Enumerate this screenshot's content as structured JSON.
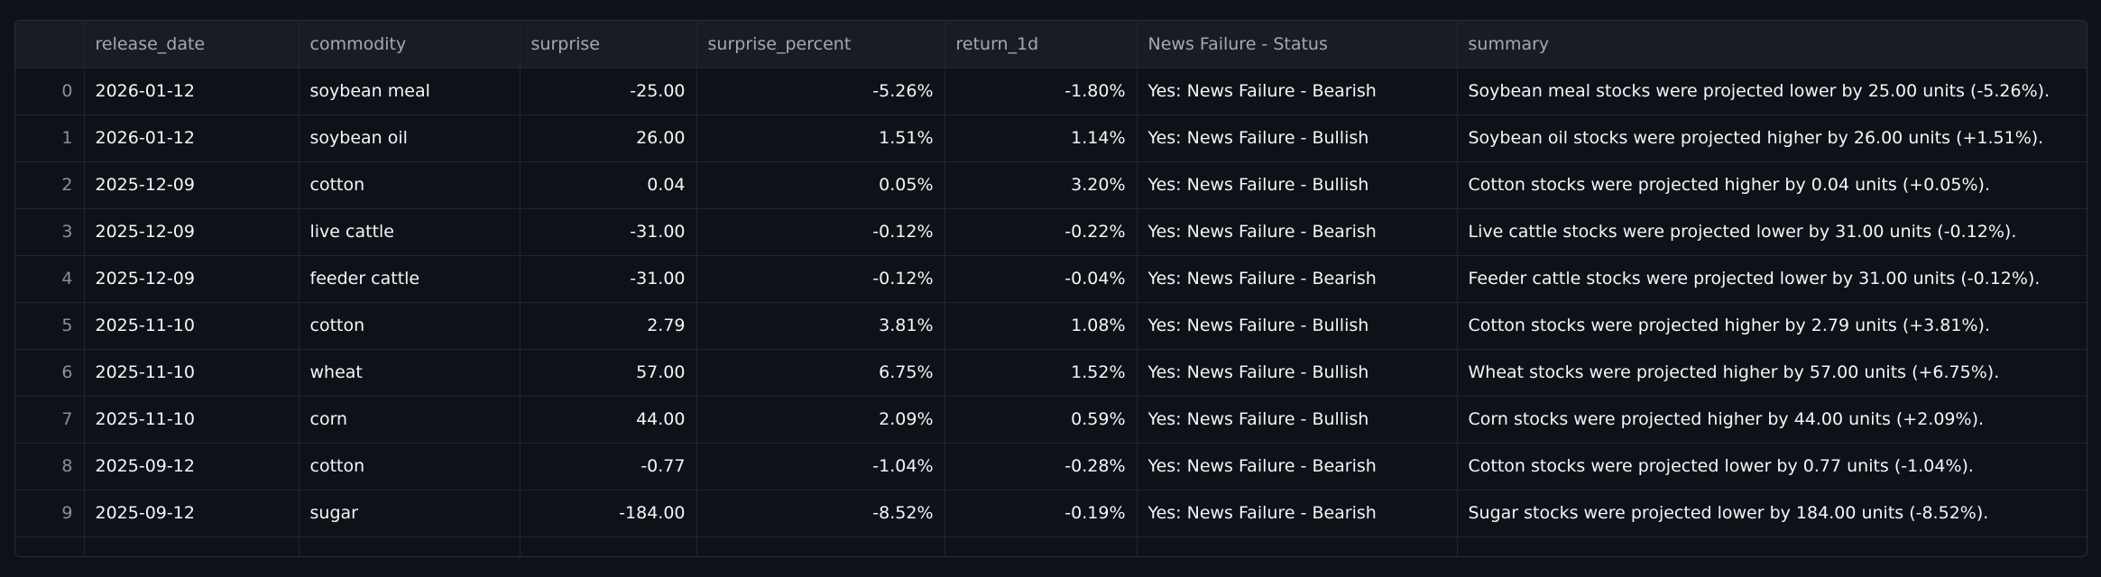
{
  "table": {
    "columns": [
      "release_date",
      "commodity",
      "surprise",
      "surprise_percent",
      "return_1d",
      "News Failure - Status",
      "summary"
    ],
    "rows": [
      [
        "0",
        "2026-01-12",
        "soybean meal",
        "-25.00",
        "-5.26%",
        "-1.80%",
        "Yes: News Failure - Bearish",
        "Soybean meal stocks were projected lower by 25.00 units (-5.26%)."
      ],
      [
        "1",
        "2026-01-12",
        "soybean oil",
        "26.00",
        "1.51%",
        "1.14%",
        "Yes: News Failure - Bullish",
        "Soybean oil stocks were projected higher by 26.00 units (+1.51%)."
      ],
      [
        "2",
        "2025-12-09",
        "cotton",
        "0.04",
        "0.05%",
        "3.20%",
        "Yes: News Failure - Bullish",
        "Cotton stocks were projected higher by 0.04 units (+0.05%)."
      ],
      [
        "3",
        "2025-12-09",
        "live cattle",
        "-31.00",
        "-0.12%",
        "-0.22%",
        "Yes: News Failure - Bearish",
        "Live cattle stocks were projected lower by 31.00 units (-0.12%)."
      ],
      [
        "4",
        "2025-12-09",
        "feeder cattle",
        "-31.00",
        "-0.12%",
        "-0.04%",
        "Yes: News Failure - Bearish",
        "Feeder cattle stocks were projected lower by 31.00 units (-0.12%)."
      ],
      [
        "5",
        "2025-11-10",
        "cotton",
        "2.79",
        "3.81%",
        "1.08%",
        "Yes: News Failure - Bullish",
        "Cotton stocks were projected higher by 2.79 units (+3.81%)."
      ],
      [
        "6",
        "2025-11-10",
        "wheat",
        "57.00",
        "6.75%",
        "1.52%",
        "Yes: News Failure - Bullish",
        "Wheat stocks were projected higher by 57.00 units (+6.75%)."
      ],
      [
        "7",
        "2025-11-10",
        "corn",
        "44.00",
        "2.09%",
        "0.59%",
        "Yes: News Failure - Bullish",
        "Corn stocks were projected higher by 44.00 units (+2.09%)."
      ],
      [
        "8",
        "2025-09-12",
        "cotton",
        "-0.77",
        "-1.04%",
        "-0.28%",
        "Yes: News Failure - Bearish",
        "Cotton stocks were projected lower by 0.77 units (-1.04%)."
      ],
      [
        "9",
        "2025-09-12",
        "sugar",
        "-184.00",
        "-8.52%",
        "-0.19%",
        "Yes: News Failure - Bearish",
        "Sugar stocks were projected lower by 184.00 units (-8.52%)."
      ]
    ]
  }
}
